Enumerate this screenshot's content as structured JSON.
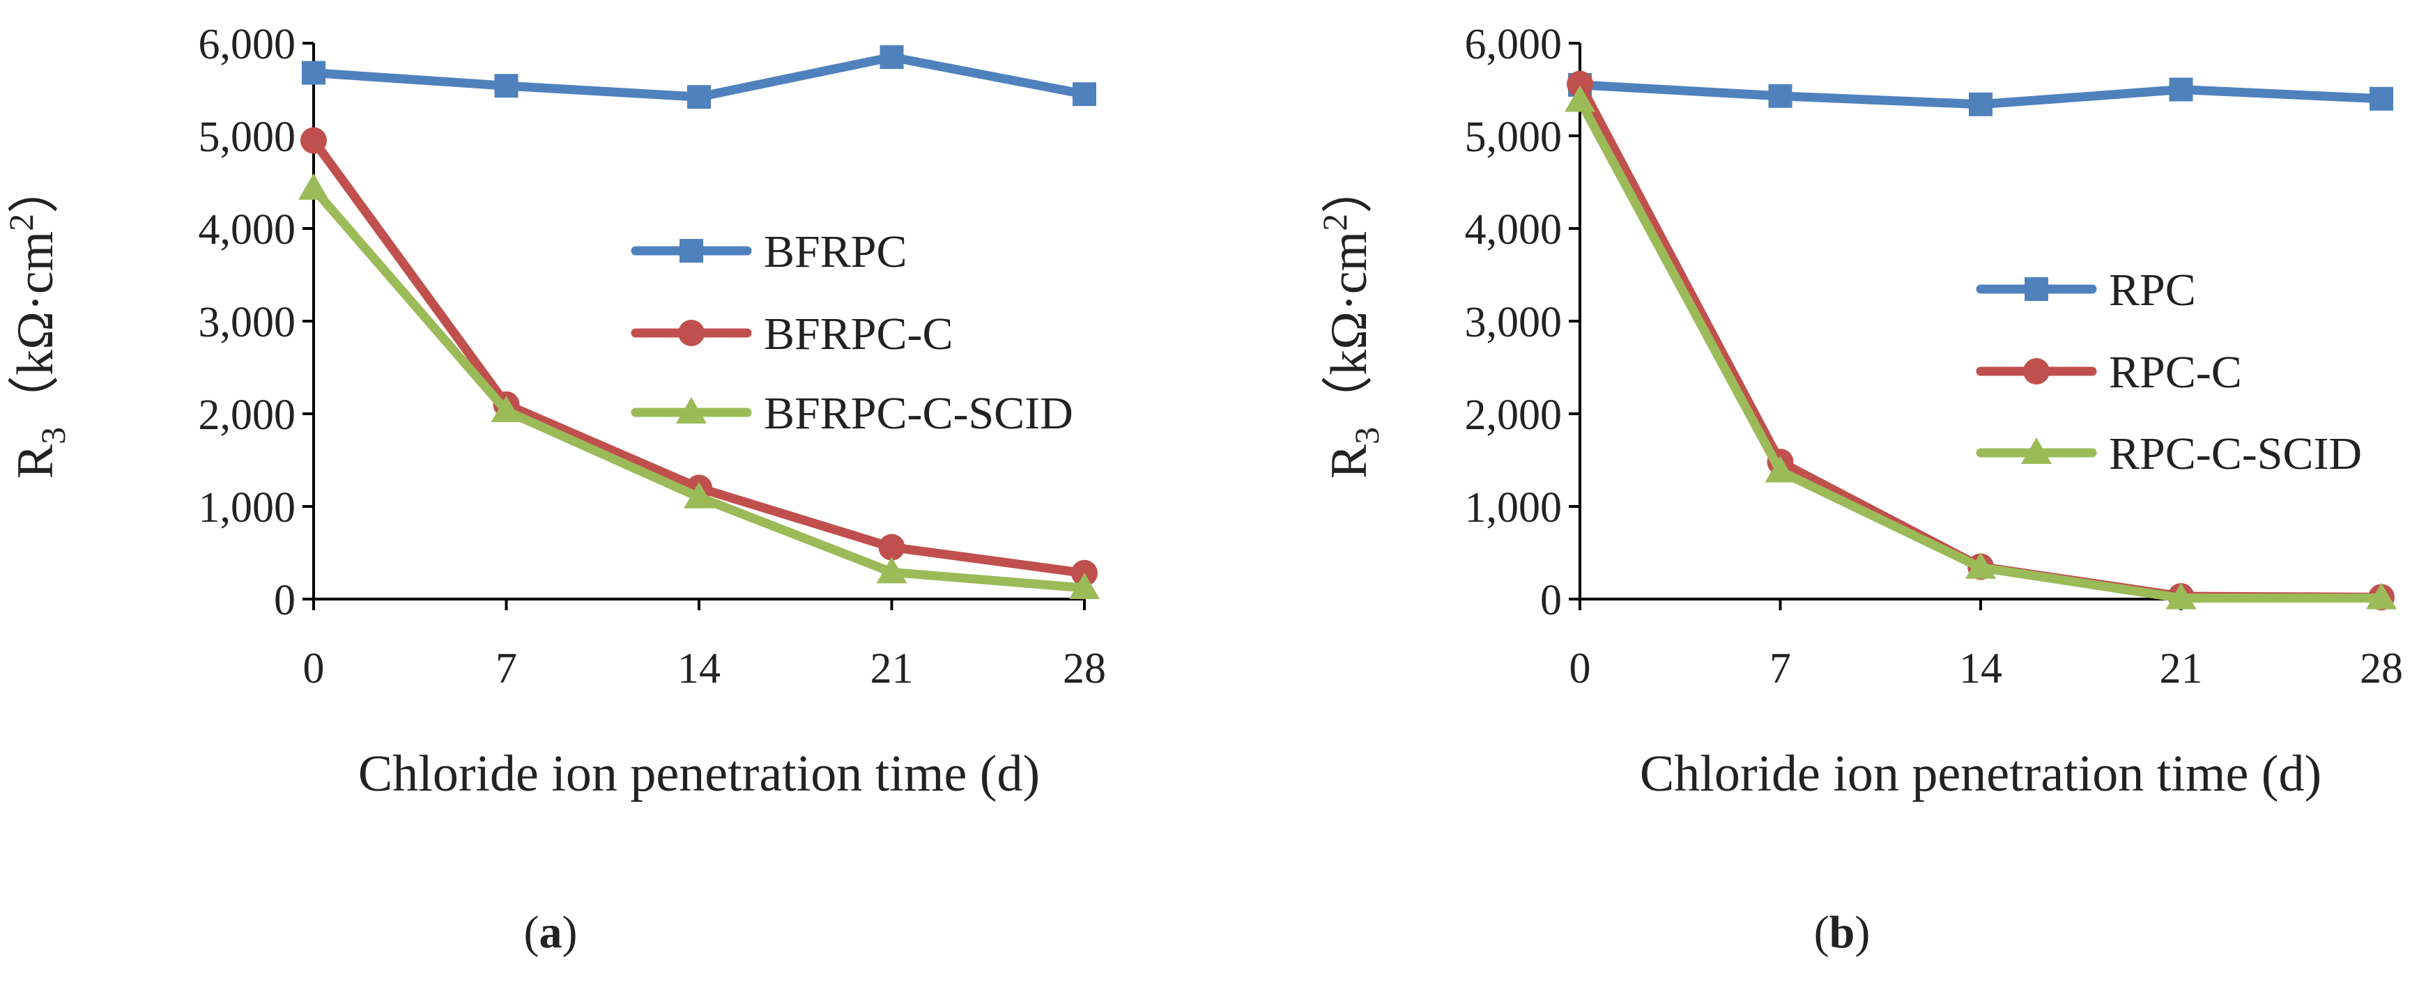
{
  "chart_data": [
    {
      "type": "line",
      "panel_label": "a",
      "x": [
        0,
        7,
        14,
        21,
        28
      ],
      "xlabel": "Chloride ion penetration time (d)",
      "ylabel": {
        "main": "R",
        "sub": "3",
        "unit_open": "（kΩ·cm",
        "unit_sup": "2",
        "unit_close": "）"
      },
      "ylim": [
        0,
        6000
      ],
      "y_ticks": [
        "0",
        "1,000",
        "2,000",
        "3,000",
        "4,000",
        "5,000",
        "6,000"
      ],
      "x_ticks": [
        "0",
        "7",
        "14",
        "21",
        "28"
      ],
      "grid": false,
      "legend_position": "right-middle",
      "series": [
        {
          "name": "BFRPC",
          "color": "#4F81BD",
          "marker": "square",
          "values": [
            5680,
            5540,
            5420,
            5850,
            5450
          ]
        },
        {
          "name": "BFRPC-C",
          "color": "#C0504D",
          "marker": "circle",
          "values": [
            4950,
            2100,
            1200,
            560,
            280
          ]
        },
        {
          "name": "BFRPC-C-SCID",
          "color": "#9BBB59",
          "marker": "triangle",
          "values": [
            4430,
            2030,
            1100,
            290,
            120
          ]
        }
      ]
    },
    {
      "type": "line",
      "panel_label": "b",
      "x": [
        0,
        7,
        14,
        21,
        28
      ],
      "xlabel": "Chloride ion penetration time (d)",
      "ylabel": {
        "main": "R",
        "sub": "3",
        "unit_open": "（kΩ·cm",
        "unit_sup": "2",
        "unit_close": "）"
      },
      "ylim": [
        0,
        6000
      ],
      "y_ticks": [
        "0",
        "1,000",
        "2,000",
        "3,000",
        "4,000",
        "5,000",
        "6,000"
      ],
      "x_ticks": [
        "0",
        "7",
        "14",
        "21",
        "28"
      ],
      "grid": false,
      "legend_position": "right-middle",
      "series": [
        {
          "name": "RPC",
          "color": "#4F81BD",
          "marker": "square",
          "values": [
            5550,
            5430,
            5340,
            5500,
            5400
          ]
        },
        {
          "name": "RPC-C",
          "color": "#C0504D",
          "marker": "circle",
          "values": [
            5560,
            1480,
            350,
            30,
            20
          ]
        },
        {
          "name": "RPC-C-SCID",
          "color": "#9BBB59",
          "marker": "triangle",
          "values": [
            5380,
            1380,
            340,
            10,
            10
          ]
        }
      ]
    }
  ]
}
